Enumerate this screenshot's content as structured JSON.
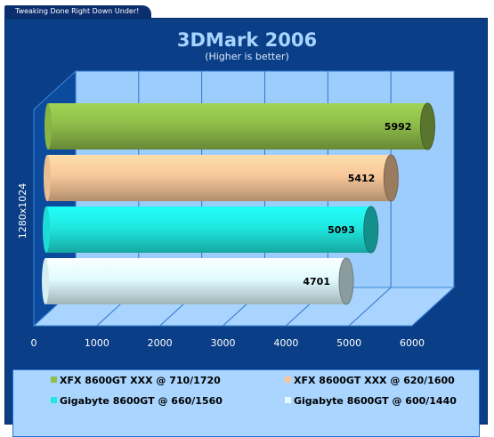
{
  "banner": "Tweaking Done Right Down Under!",
  "chart_data": {
    "type": "bar",
    "orientation": "horizontal",
    "title": "3DMark 2006",
    "subtitle": "(Higher is better)",
    "ylabel": "1280x1024",
    "xlim": [
      0,
      6000
    ],
    "x_ticks": [
      "0",
      "1000",
      "2000",
      "3000",
      "4000",
      "5000",
      "6000"
    ],
    "grid": true,
    "legend_position": "bottom",
    "categories": [
      "1280x1024"
    ],
    "series": [
      {
        "name": "XFX 8600GT XXX @ 710/1720",
        "values": [
          5992
        ],
        "color": "#8fbd4a",
        "label": "5992"
      },
      {
        "name": "XFX 8600GT XXX @ 620/1600",
        "values": [
          5412
        ],
        "color": "#f7c79a",
        "label": "5412"
      },
      {
        "name": "Gigabyte  8600GT @ 660/1560",
        "values": [
          5093
        ],
        "color": "#1fe8e0",
        "label": "5093"
      },
      {
        "name": "Gigabyte  8600GT @ 600/1440",
        "values": [
          4701
        ],
        "color": "#e0fbff",
        "label": "4701"
      }
    ]
  }
}
